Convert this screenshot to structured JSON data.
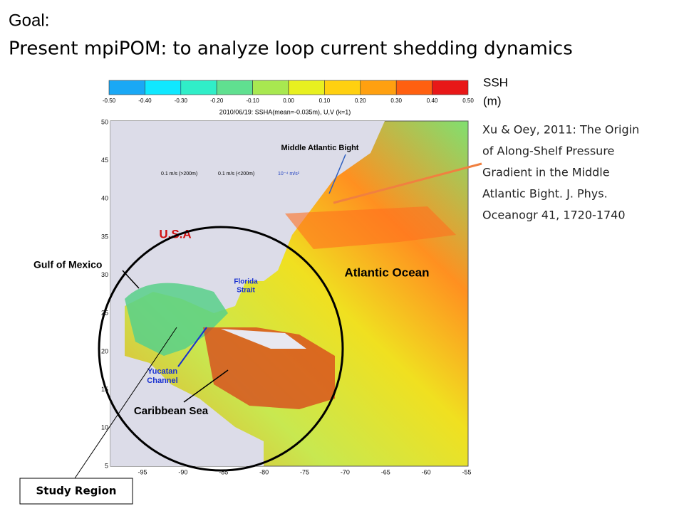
{
  "slide": {
    "goal": "Goal:",
    "heading": "Present mpiPOM:  to analyze loop current shedding dynamics",
    "colorbar": {
      "ticks": [
        "-0.50",
        "-0.40",
        "-0.30",
        "-0.20",
        "-0.10",
        "0.00",
        "0.10",
        "0.20",
        "0.30",
        "0.40",
        "0.50"
      ],
      "unit_name": "SSH",
      "unit": "(m)"
    },
    "map": {
      "title": "2010/06/19: SSHA(mean=-0.035m), U,V (k=1)",
      "lat_ticks": [
        "50",
        "45",
        "40",
        "35",
        "30",
        "25",
        "20",
        "15",
        "10",
        "5"
      ],
      "lon_ticks": [
        "-95",
        "-90",
        "-85",
        "-80",
        "-75",
        "-70",
        "-65",
        "-60",
        "-55"
      ],
      "legend": [
        "0.1 m/s (>200m)",
        "0.1 m/s (<200m)",
        "10⁻⁴ m/s²"
      ],
      "labels": {
        "mab": "Middle Atlantic Bight",
        "usa": "U.S.A",
        "gulf": "Gulf of Mexico",
        "florida": [
          "Florida",
          "Strait"
        ],
        "atlantic": "Atlantic Ocean",
        "yucatan": [
          "Yucatan",
          "Channel"
        ],
        "caribbean": "Caribbean Sea"
      }
    },
    "reference": [
      "Xu & Oey, 2011: The Origin",
      "of Along-Shelf Pressure",
      "Gradient in the Middle",
      "Atlantic Bight. J. Phys.",
      "Oceanogr 41, 1720-1740"
    ],
    "study_region": "Study Region"
  }
}
